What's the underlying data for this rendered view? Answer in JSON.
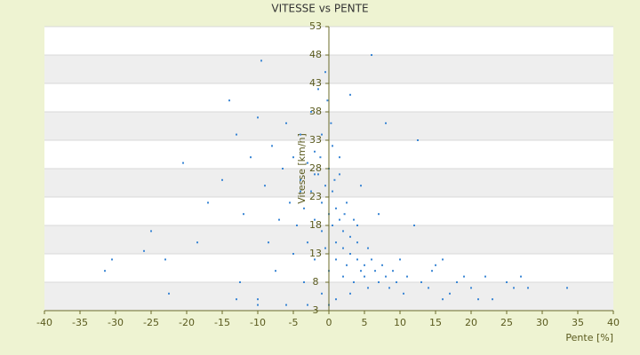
{
  "chart_data": {
    "type": "scatter",
    "title": "VITESSE vs PENTE",
    "xlabel": "Pente [%]",
    "ylabel": "Vitesse [km/h]",
    "color": "#3a86d4",
    "grid": true,
    "xlim": [
      -40,
      40
    ],
    "ylim": [
      3,
      53
    ],
    "xticks": [
      -40,
      -35,
      -30,
      -25,
      -20,
      -15,
      -10,
      -5,
      0,
      5,
      10,
      15,
      20,
      25,
      30,
      35,
      40
    ],
    "yticks": [
      3,
      8,
      13,
      18,
      23,
      28,
      33,
      38,
      43,
      48,
      53
    ],
    "x": [
      -31.5,
      -30.5,
      -26,
      -25,
      -23,
      -22.5,
      -20.5,
      -18.5,
      -17,
      -15,
      -14,
      -13,
      -12.5,
      -12,
      -11,
      -10,
      -10,
      -9.5,
      -9,
      -8.5,
      -8,
      -7.5,
      -7,
      -6.5,
      -6,
      -5.5,
      -5,
      -5,
      -4.5,
      -4,
      -4,
      -3.5,
      -3.5,
      -3,
      -3,
      -2.5,
      -2.5,
      -2,
      -2,
      -2,
      -1.5,
      -1.5,
      -1,
      -1,
      -1,
      -0.5,
      -0.5,
      -0.5,
      0,
      0,
      0,
      0,
      0.5,
      0.5,
      0.5,
      1,
      1,
      1,
      1.5,
      1.5,
      2,
      2,
      2,
      2.5,
      2.5,
      3,
      3,
      3,
      3.5,
      3.5,
      4,
      4,
      4.5,
      4.5,
      5,
      5,
      5.5,
      5.5,
      6,
      6,
      6.5,
      7,
      7,
      7.5,
      8,
      8,
      8.5,
      9,
      9.5,
      10,
      10.5,
      11,
      12,
      12.5,
      13,
      14,
      14.5,
      15,
      16,
      16,
      17,
      18,
      19,
      20,
      21,
      22,
      23,
      25,
      26,
      27,
      28,
      33.5,
      -1,
      -3,
      -6,
      -10,
      -13,
      1,
      3,
      0.3,
      -0.2,
      1.5,
      -4,
      -2,
      0.8,
      2.2,
      -1.2,
      4
    ],
    "values": [
      10,
      12,
      13.5,
      17,
      12,
      6,
      29,
      15,
      22,
      26,
      40,
      34,
      8,
      20,
      30,
      37,
      5,
      47,
      25,
      15,
      32,
      10,
      19,
      28,
      36,
      22,
      13,
      30,
      18,
      26,
      34,
      8,
      21,
      29,
      15,
      38,
      24,
      19,
      31,
      12,
      27,
      42,
      22,
      17,
      34,
      25,
      14,
      45,
      20,
      28,
      10,
      4,
      18,
      24,
      32,
      15,
      21,
      12,
      19,
      27,
      14,
      17,
      9,
      22,
      11,
      16,
      13,
      41,
      19,
      8,
      12,
      15,
      25,
      10,
      11,
      9,
      14,
      7,
      48,
      12,
      10,
      8,
      20,
      11,
      9,
      36,
      7,
      10,
      8,
      12,
      6,
      9,
      18,
      33,
      8,
      7,
      10,
      11,
      5,
      12,
      6,
      8,
      9,
      7,
      5,
      9,
      5,
      8,
      7,
      9,
      7,
      7,
      6,
      4,
      4,
      4,
      5,
      5,
      6,
      36,
      40,
      30,
      24,
      27,
      26,
      20,
      30,
      18
    ]
  }
}
